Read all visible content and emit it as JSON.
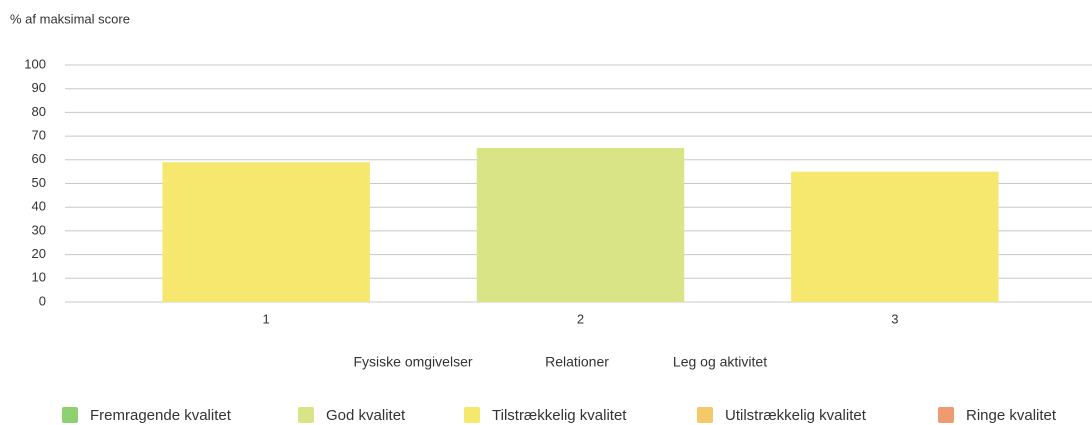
{
  "chart_data": {
    "type": "bar",
    "y_axis_label": "% af maksimal score",
    "categories": [
      "1",
      "2",
      "3"
    ],
    "values": [
      59,
      65,
      55
    ],
    "colors": [
      "#f6e86e",
      "#d9e487",
      "#f6e86e"
    ],
    "category_names": [
      "Fysiske omgivelser",
      "Relationer",
      "Leg og aktivitet"
    ],
    "ylim": [
      0,
      100
    ],
    "yticks": [
      0,
      10,
      20,
      30,
      40,
      50,
      60,
      70,
      80,
      90,
      100
    ],
    "grid": true,
    "legend": [
      {
        "name": "Fremragende kvalitet",
        "color": "#8fd070"
      },
      {
        "name": "God kvalitet",
        "color": "#d9e487"
      },
      {
        "name": "Tilstrækkelig kvalitet",
        "color": "#f6e86e"
      },
      {
        "name": "Utilstrækkelig kvalitet",
        "color": "#f5c96a"
      },
      {
        "name": "Ringe kvalitet",
        "color": "#f09a72"
      }
    ]
  }
}
